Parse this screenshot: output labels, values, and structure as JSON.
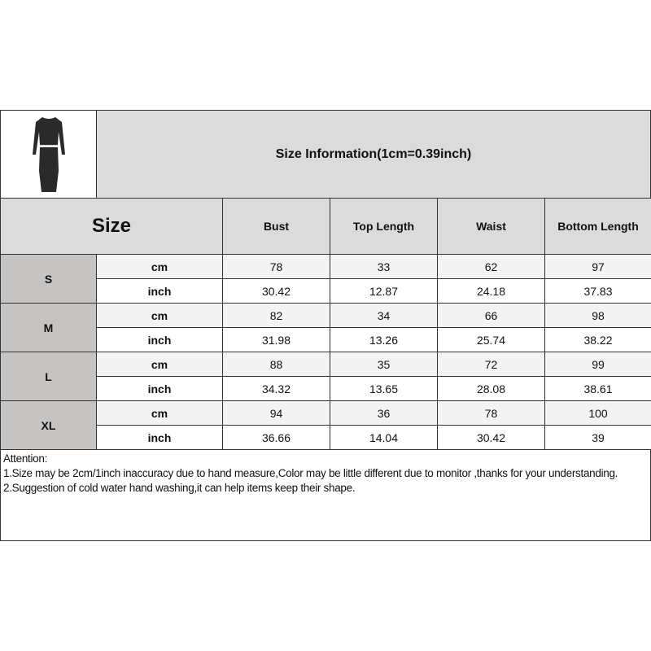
{
  "title": "Size Information(1cm=0.39inch)",
  "size_header": "Size",
  "columns": [
    "Bust",
    "Top Length",
    "Waist",
    "Bottom Length"
  ],
  "sizes": [
    {
      "name": "S",
      "rows": [
        {
          "unit": "cm",
          "values": [
            "78",
            "33",
            "62",
            "97"
          ]
        },
        {
          "unit": "inch",
          "values": [
            "30.42",
            "12.87",
            "24.18",
            "37.83"
          ]
        }
      ]
    },
    {
      "name": "M",
      "rows": [
        {
          "unit": "cm",
          "values": [
            "82",
            "34",
            "66",
            "98"
          ]
        },
        {
          "unit": "inch",
          "values": [
            "31.98",
            "13.26",
            "25.74",
            "38.22"
          ]
        }
      ]
    },
    {
      "name": "L",
      "rows": [
        {
          "unit": "cm",
          "values": [
            "88",
            "35",
            "72",
            "99"
          ]
        },
        {
          "unit": "inch",
          "values": [
            "34.32",
            "13.65",
            "28.08",
            "38.61"
          ]
        }
      ]
    },
    {
      "name": "XL",
      "rows": [
        {
          "unit": "cm",
          "values": [
            "94",
            "36",
            "78",
            "100"
          ]
        },
        {
          "unit": "inch",
          "values": [
            "36.66",
            "14.04",
            "30.42",
            "39"
          ]
        }
      ]
    }
  ],
  "attention": {
    "heading": "Attention:",
    "lines": [
      "1.Size may be 2cm/1inch inaccuracy due to hand measure,Color may be little different due to monitor ,thanks for your understanding.",
      "2.Suggestion of cold water hand washing,it can help items keep their shape."
    ]
  }
}
